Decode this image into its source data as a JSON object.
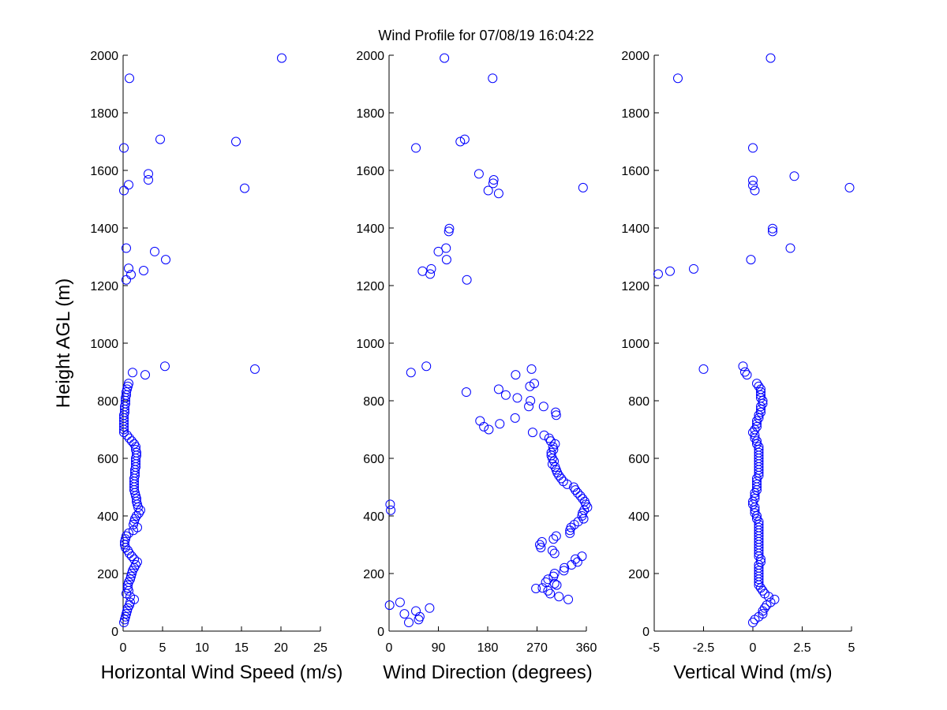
{
  "figure_title": "Wind Profile for  07/08/19 16:04:22",
  "colors": {
    "marker": "#0000ff",
    "axis": "#000000",
    "background": "#ffffff"
  },
  "chart_data": [
    {
      "type": "scatter",
      "id": "speed",
      "xlabel": "Horizontal Wind Speed (m/s)",
      "ylabel": "Height AGL (m)",
      "xlim": [
        0,
        25
      ],
      "ylim": [
        0,
        2000
      ],
      "xticks": [
        0,
        5,
        10,
        15,
        20,
        25
      ],
      "xtick_labels": [
        "0",
        "5",
        "10",
        "15",
        "20",
        "25"
      ],
      "yticks": [
        0,
        200,
        400,
        600,
        800,
        1000,
        1200,
        1400,
        1600,
        1800,
        2000
      ],
      "ytick_labels": [
        "0",
        "200",
        "400",
        "600",
        "800",
        "1000",
        "1200",
        "1400",
        "1600",
        "1800",
        "2000"
      ],
      "points": [
        [
          20.1,
          1990
        ],
        [
          0.8,
          1920
        ],
        [
          4.7,
          1708
        ],
        [
          14.3,
          1700
        ],
        [
          0.1,
          1678
        ],
        [
          3.2,
          1588
        ],
        [
          3.2,
          1567
        ],
        [
          15.4,
          1538
        ],
        [
          0.7,
          1550
        ],
        [
          0.1,
          1530
        ],
        [
          0.4,
          1330
        ],
        [
          4.0,
          1318
        ],
        [
          5.4,
          1290
        ],
        [
          0.7,
          1260
        ],
        [
          2.6,
          1252
        ],
        [
          1.0,
          1238
        ],
        [
          0.4,
          1220
        ],
        [
          5.3,
          920
        ],
        [
          16.7,
          910
        ],
        [
          1.2,
          898
        ],
        [
          2.8,
          890
        ],
        [
          0.7,
          860
        ],
        [
          0.6,
          850
        ],
        [
          0.5,
          840
        ],
        [
          0.4,
          830
        ],
        [
          0.4,
          820
        ],
        [
          0.3,
          810
        ],
        [
          0.3,
          800
        ],
        [
          0.3,
          790
        ],
        [
          0.2,
          780
        ],
        [
          0.2,
          770
        ],
        [
          0.2,
          760
        ],
        [
          0.1,
          750
        ],
        [
          0.1,
          740
        ],
        [
          0.1,
          730
        ],
        [
          0.1,
          720
        ],
        [
          0.1,
          710
        ],
        [
          0.1,
          700
        ],
        [
          0.1,
          690
        ],
        [
          0.5,
          680
        ],
        [
          0.8,
          670
        ],
        [
          1.1,
          660
        ],
        [
          1.4,
          650
        ],
        [
          1.6,
          640
        ],
        [
          1.6,
          630
        ],
        [
          1.7,
          620
        ],
        [
          1.7,
          610
        ],
        [
          1.6,
          600
        ],
        [
          1.6,
          590
        ],
        [
          1.6,
          580
        ],
        [
          1.6,
          570
        ],
        [
          1.5,
          560
        ],
        [
          1.5,
          550
        ],
        [
          1.5,
          540
        ],
        [
          1.4,
          530
        ],
        [
          1.4,
          520
        ],
        [
          1.4,
          510
        ],
        [
          1.4,
          500
        ],
        [
          1.4,
          490
        ],
        [
          1.5,
          480
        ],
        [
          1.6,
          470
        ],
        [
          1.7,
          460
        ],
        [
          1.7,
          450
        ],
        [
          1.8,
          440
        ],
        [
          1.9,
          430
        ],
        [
          2.2,
          420
        ],
        [
          2.0,
          410
        ],
        [
          1.7,
          400
        ],
        [
          1.5,
          390
        ],
        [
          1.4,
          380
        ],
        [
          1.3,
          370
        ],
        [
          1.8,
          360
        ],
        [
          1.3,
          350
        ],
        [
          0.7,
          340
        ],
        [
          0.4,
          330
        ],
        [
          0.3,
          320
        ],
        [
          0.2,
          310
        ],
        [
          0.2,
          300
        ],
        [
          0.3,
          290
        ],
        [
          0.6,
          280
        ],
        [
          0.8,
          270
        ],
        [
          1.1,
          260
        ],
        [
          1.4,
          250
        ],
        [
          1.8,
          240
        ],
        [
          1.6,
          230
        ],
        [
          1.4,
          220
        ],
        [
          1.2,
          210
        ],
        [
          1.1,
          200
        ],
        [
          1.0,
          190
        ],
        [
          0.9,
          180
        ],
        [
          0.7,
          170
        ],
        [
          0.6,
          160
        ],
        [
          0.6,
          150
        ],
        [
          0.7,
          140
        ],
        [
          0.4,
          130
        ],
        [
          0.9,
          120
        ],
        [
          1.4,
          110
        ],
        [
          0.9,
          100
        ],
        [
          0.8,
          90
        ],
        [
          0.6,
          80
        ],
        [
          0.5,
          70
        ],
        [
          0.4,
          60
        ],
        [
          0.3,
          50
        ],
        [
          0.2,
          40
        ],
        [
          0.1,
          30
        ]
      ]
    },
    {
      "type": "scatter",
      "id": "direction",
      "xlabel": "Wind Direction (degrees)",
      "ylabel": "",
      "xlim": [
        0,
        360
      ],
      "ylim": [
        0,
        2000
      ],
      "xticks": [
        0,
        90,
        180,
        270,
        360
      ],
      "xtick_labels": [
        "0",
        "90",
        "180",
        "270",
        "360"
      ],
      "yticks": [
        0,
        200,
        400,
        600,
        800,
        1000,
        1200,
        1400,
        1600,
        1800,
        2000
      ],
      "ytick_labels": [
        "0",
        "200",
        "400",
        "600",
        "800",
        "1000",
        "1200",
        "1400",
        "1600",
        "1800",
        "2000"
      ],
      "points": [
        [
          101,
          1990
        ],
        [
          189,
          1920
        ],
        [
          138,
          1708
        ],
        [
          130,
          1700
        ],
        [
          49,
          1678
        ],
        [
          164,
          1588
        ],
        [
          191,
          1567
        ],
        [
          190,
          1555
        ],
        [
          181,
          1530
        ],
        [
          200,
          1520
        ],
        [
          354,
          1540
        ],
        [
          110,
          1398
        ],
        [
          109,
          1388
        ],
        [
          104,
          1330
        ],
        [
          90,
          1318
        ],
        [
          105,
          1290
        ],
        [
          77,
          1258
        ],
        [
          61,
          1250
        ],
        [
          75,
          1240
        ],
        [
          142,
          1220
        ],
        [
          68,
          920
        ],
        [
          40,
          898
        ],
        [
          231,
          890
        ],
        [
          260,
          910
        ],
        [
          265,
          860
        ],
        [
          257,
          850
        ],
        [
          141,
          830
        ],
        [
          200,
          840
        ],
        [
          213,
          820
        ],
        [
          234,
          810
        ],
        [
          258,
          800
        ],
        [
          255,
          780
        ],
        [
          282,
          780
        ],
        [
          304,
          760
        ],
        [
          305,
          750
        ],
        [
          230,
          740
        ],
        [
          166,
          730
        ],
        [
          202,
          720
        ],
        [
          173,
          710
        ],
        [
          182,
          700
        ],
        [
          262,
          690
        ],
        [
          283,
          680
        ],
        [
          292,
          670
        ],
        [
          295,
          660
        ],
        [
          303,
          650
        ],
        [
          299,
          640
        ],
        [
          300,
          630
        ],
        [
          296,
          620
        ],
        [
          296,
          610
        ],
        [
          298,
          600
        ],
        [
          301,
          590
        ],
        [
          298,
          580
        ],
        [
          303,
          570
        ],
        [
          305,
          560
        ],
        [
          307,
          550
        ],
        [
          310,
          540
        ],
        [
          314,
          530
        ],
        [
          318,
          520
        ],
        [
          325,
          510
        ],
        [
          337,
          500
        ],
        [
          340,
          490
        ],
        [
          344,
          480
        ],
        [
          349,
          470
        ],
        [
          353,
          460
        ],
        [
          357,
          450
        ],
        [
          359,
          440
        ],
        [
          362,
          430
        ],
        [
          356,
          420
        ],
        [
          353,
          410
        ],
        [
          352,
          400
        ],
        [
          355,
          390
        ],
        [
          345,
          380
        ],
        [
          338,
          370
        ],
        [
          332,
          360
        ],
        [
          330,
          350
        ],
        [
          330,
          340
        ],
        [
          305,
          330
        ],
        [
          300,
          320
        ],
        [
          279,
          310
        ],
        [
          275,
          300
        ],
        [
          277,
          290
        ],
        [
          298,
          280
        ],
        [
          302,
          270
        ],
        [
          352,
          260
        ],
        [
          340,
          250
        ],
        [
          344,
          240
        ],
        [
          333,
          230
        ],
        [
          320,
          220
        ],
        [
          319,
          210
        ],
        [
          302,
          200
        ],
        [
          300,
          190
        ],
        [
          290,
          180
        ],
        [
          286,
          170
        ],
        [
          302,
          165
        ],
        [
          306,
          160
        ],
        [
          280,
          150
        ],
        [
          268,
          148
        ],
        [
          290,
          140
        ],
        [
          294,
          130
        ],
        [
          310,
          120
        ],
        [
          327,
          110
        ],
        [
          2,
          440
        ],
        [
          3,
          420
        ],
        [
          1,
          90
        ],
        [
          20,
          100
        ],
        [
          28,
          60
        ],
        [
          49,
          70
        ],
        [
          56,
          50
        ],
        [
          54,
          40
        ],
        [
          36,
          30
        ],
        [
          74,
          80
        ]
      ]
    },
    {
      "type": "scatter",
      "id": "vertical",
      "xlabel": "Vertical Wind (m/s)",
      "ylabel": "",
      "xlim": [
        -5,
        5
      ],
      "ylim": [
        0,
        2000
      ],
      "xticks": [
        -5,
        -2.5,
        0,
        2.5,
        5
      ],
      "xtick_labels": [
        "-5",
        "-2.5",
        "0",
        "2.5",
        "5"
      ],
      "yticks": [
        0,
        200,
        400,
        600,
        800,
        1000,
        1200,
        1400,
        1600,
        1800,
        2000
      ],
      "ytick_labels": [
        "0",
        "200",
        "400",
        "600",
        "800",
        "1000",
        "1200",
        "1400",
        "1600",
        "1800",
        "2000"
      ],
      "points": [
        [
          0.9,
          1990
        ],
        [
          -3.8,
          1920
        ],
        [
          0.0,
          1678
        ],
        [
          2.1,
          1580
        ],
        [
          0.0,
          1565
        ],
        [
          0.0,
          1548
        ],
        [
          0.1,
          1530
        ],
        [
          4.9,
          1540
        ],
        [
          1.0,
          1398
        ],
        [
          1.0,
          1388
        ],
        [
          1.9,
          1330
        ],
        [
          -0.1,
          1290
        ],
        [
          -3.0,
          1258
        ],
        [
          -4.2,
          1250
        ],
        [
          -4.8,
          1240
        ],
        [
          -0.5,
          920
        ],
        [
          -2.5,
          910
        ],
        [
          -0.4,
          900
        ],
        [
          -0.3,
          890
        ],
        [
          0.2,
          860
        ],
        [
          0.3,
          850
        ],
        [
          0.4,
          840
        ],
        [
          0.4,
          830
        ],
        [
          0.4,
          820
        ],
        [
          0.4,
          810
        ],
        [
          0.5,
          800
        ],
        [
          0.5,
          790
        ],
        [
          0.4,
          780
        ],
        [
          0.4,
          770
        ],
        [
          0.4,
          760
        ],
        [
          0.3,
          750
        ],
        [
          0.3,
          740
        ],
        [
          0.2,
          730
        ],
        [
          0.2,
          720
        ],
        [
          0.2,
          710
        ],
        [
          0.1,
          700
        ],
        [
          0.0,
          690
        ],
        [
          0.1,
          680
        ],
        [
          0.1,
          670
        ],
        [
          0.2,
          660
        ],
        [
          0.2,
          650
        ],
        [
          0.3,
          640
        ],
        [
          0.3,
          630
        ],
        [
          0.3,
          620
        ],
        [
          0.3,
          610
        ],
        [
          0.3,
          600
        ],
        [
          0.3,
          590
        ],
        [
          0.3,
          580
        ],
        [
          0.3,
          570
        ],
        [
          0.3,
          560
        ],
        [
          0.3,
          550
        ],
        [
          0.3,
          540
        ],
        [
          0.2,
          530
        ],
        [
          0.2,
          520
        ],
        [
          0.2,
          510
        ],
        [
          0.2,
          500
        ],
        [
          0.2,
          490
        ],
        [
          0.1,
          480
        ],
        [
          0.1,
          470
        ],
        [
          0.1,
          460
        ],
        [
          0.0,
          450
        ],
        [
          0.0,
          440
        ],
        [
          0.1,
          430
        ],
        [
          0.1,
          420
        ],
        [
          0.1,
          410
        ],
        [
          0.2,
          400
        ],
        [
          0.2,
          390
        ],
        [
          0.3,
          380
        ],
        [
          0.3,
          370
        ],
        [
          0.3,
          360
        ],
        [
          0.3,
          350
        ],
        [
          0.3,
          340
        ],
        [
          0.3,
          330
        ],
        [
          0.3,
          320
        ],
        [
          0.3,
          310
        ],
        [
          0.3,
          300
        ],
        [
          0.3,
          290
        ],
        [
          0.3,
          280
        ],
        [
          0.3,
          270
        ],
        [
          0.3,
          260
        ],
        [
          0.4,
          250
        ],
        [
          0.4,
          240
        ],
        [
          0.3,
          230
        ],
        [
          0.3,
          220
        ],
        [
          0.3,
          210
        ],
        [
          0.3,
          200
        ],
        [
          0.3,
          190
        ],
        [
          0.3,
          180
        ],
        [
          0.3,
          170
        ],
        [
          0.3,
          160
        ],
        [
          0.4,
          150
        ],
        [
          0.5,
          140
        ],
        [
          0.6,
          130
        ],
        [
          0.8,
          120
        ],
        [
          1.1,
          110
        ],
        [
          0.9,
          100
        ],
        [
          0.7,
          90
        ],
        [
          0.6,
          80
        ],
        [
          0.5,
          70
        ],
        [
          0.5,
          60
        ],
        [
          0.3,
          50
        ],
        [
          0.1,
          40
        ],
        [
          0.0,
          30
        ]
      ]
    }
  ]
}
